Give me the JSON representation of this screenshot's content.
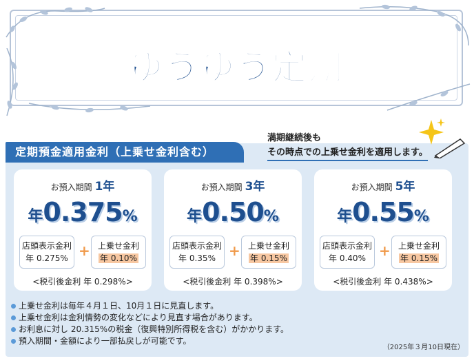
{
  "title": "ゆうゆう定期",
  "tab_label": "定期預金適用金利（上乗せ金利含む）",
  "note": {
    "line1": "満期継続後も",
    "line2": "その時点での上乗せ金利を適用します。"
  },
  "cards": [
    {
      "period_label": "お預入期間",
      "period_value": "1年",
      "rate_prefix": "年",
      "rate_value": "0.375",
      "rate_suffix": "%",
      "store_label": "店頭表示金利",
      "store_rate": "年 0.275%",
      "plus": "+",
      "bonus_label": "上乗せ金利",
      "bonus_rate": "年 0.10%",
      "after_tax": "<税引後金利 年 0.298%>"
    },
    {
      "period_label": "お預入期間",
      "period_value": "3年",
      "rate_prefix": "年",
      "rate_value": "0.50",
      "rate_suffix": "%",
      "store_label": "店頭表示金利",
      "store_rate": "年 0.35%",
      "plus": "+",
      "bonus_label": "上乗せ金利",
      "bonus_rate": "年 0.15%",
      "after_tax": "<税引後金利 年 0.398%>"
    },
    {
      "period_label": "お預入期間",
      "period_value": "5年",
      "rate_prefix": "年",
      "rate_value": "0.55",
      "rate_suffix": "%",
      "store_label": "店頭表示金利",
      "store_rate": "年 0.40%",
      "plus": "+",
      "bonus_label": "上乗せ金利",
      "bonus_rate": "年 0.15%",
      "after_tax": "<税引後金利 年 0.438%>"
    }
  ],
  "bullets": [
    "上乗せ金利は毎年４月１日、10月１日に見直します。",
    "上乗せ金利は金利情勢の変化などにより見直す場合があります。",
    "お利息に対し 20.315%の税金（復興特別所得税を含む）がかかります。",
    "預入期間・金額により一部払戻しが可能です。"
  ],
  "as_of_date": "（2025年３月10日現在）",
  "colors": {
    "brand_blue": "#1e4f8f",
    "tab_blue": "#2f6fb5",
    "panel_bg": "#dde9f5",
    "highlight_orange": "#f7c7a1",
    "plus_orange": "#f09a4a",
    "sparkle_yellow": "#f5c518"
  }
}
